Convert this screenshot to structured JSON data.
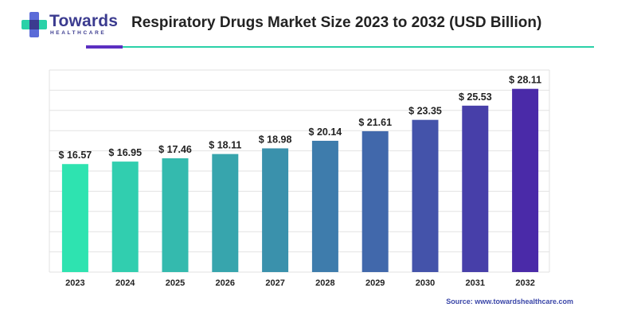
{
  "header": {
    "brand_name": "Towards",
    "brand_sub": "HEALTHCARE",
    "title": "Respiratory Drugs Market Size 2023 to 2032 (USD Billion)"
  },
  "source": "Source: www.towardshealthcare.com",
  "colors": {
    "brand": "#3b3b8f",
    "accent_purple": "#5b2fc1",
    "accent_teal": "#2ad1a8",
    "gradient_start": "#2ee3b0",
    "gradient_end": "#4a2aa8",
    "grid": "#e2e2e2"
  },
  "chart_data": {
    "type": "bar",
    "title": "Respiratory Drugs Market Size 2023 to 2032 (USD Billion)",
    "categories": [
      "2023",
      "2024",
      "2025",
      "2026",
      "2027",
      "2028",
      "2029",
      "2030",
      "2031",
      "2032"
    ],
    "values": [
      16.57,
      16.95,
      17.46,
      18.11,
      18.98,
      20.14,
      21.61,
      23.35,
      25.53,
      28.11
    ],
    "value_labels": [
      "$ 16.57",
      "$ 16.95",
      "$ 17.46",
      "$ 18.11",
      "$ 18.98",
      "$ 20.14",
      "$ 21.61",
      "$ 23.35",
      "$ 25.53",
      "$ 28.11"
    ],
    "xlabel": "",
    "ylabel": "",
    "ylim": [
      0,
      31
    ],
    "grid": true,
    "legend": "none"
  }
}
